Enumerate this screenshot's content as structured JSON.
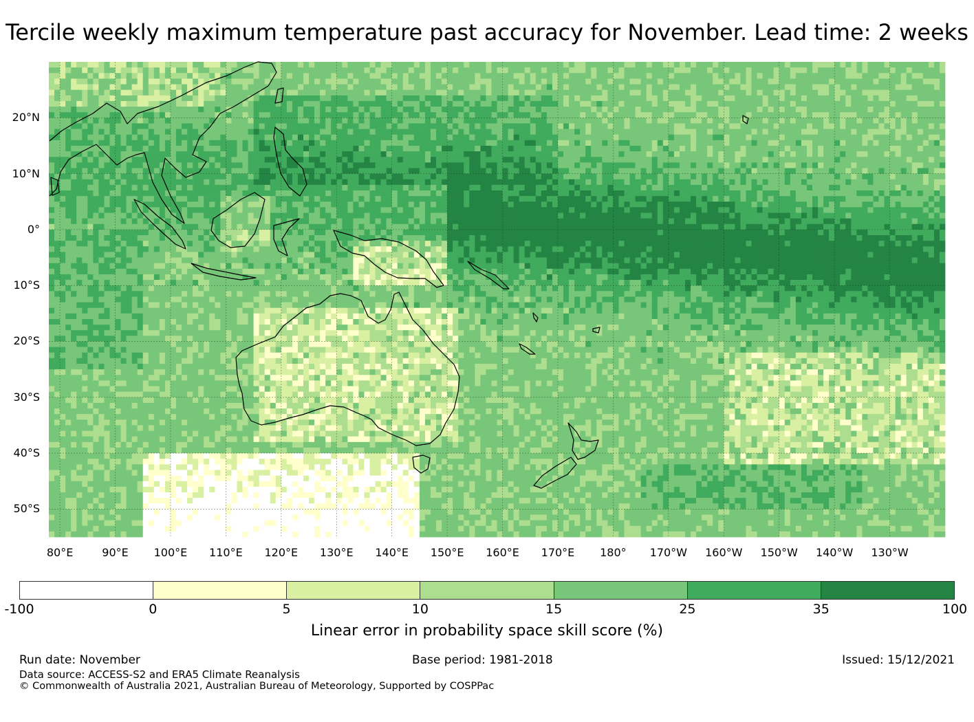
{
  "title": "Tercile weekly maximum temperature past accuracy for November. Lead time: 2 weeks",
  "map": {
    "projection": "Plate Carree",
    "extent": {
      "lon_min": 78,
      "lon_max": 240,
      "lat_min": -55,
      "lat_max": 30
    },
    "lat_ticks": [
      {
        "value": 20,
        "label": "20°N"
      },
      {
        "value": 10,
        "label": "10°N"
      },
      {
        "value": 0,
        "label": "0°"
      },
      {
        "value": -10,
        "label": "10°S"
      },
      {
        "value": -20,
        "label": "20°S"
      },
      {
        "value": -30,
        "label": "30°S"
      },
      {
        "value": -40,
        "label": "40°S"
      },
      {
        "value": -50,
        "label": "50°S"
      }
    ],
    "lon_ticks": [
      {
        "value": 80,
        "label": "80°E"
      },
      {
        "value": 90,
        "label": "90°E"
      },
      {
        "value": 100,
        "label": "100°E"
      },
      {
        "value": 110,
        "label": "110°E"
      },
      {
        "value": 120,
        "label": "120°E"
      },
      {
        "value": 130,
        "label": "130°E"
      },
      {
        "value": 140,
        "label": "140°E"
      },
      {
        "value": 150,
        "label": "150°E"
      },
      {
        "value": 160,
        "label": "160°E"
      },
      {
        "value": 170,
        "label": "170°E"
      },
      {
        "value": 180,
        "label": "180°"
      },
      {
        "value": 190,
        "label": "170°W"
      },
      {
        "value": 200,
        "label": "160°W"
      },
      {
        "value": 210,
        "label": "150°W"
      },
      {
        "value": 220,
        "label": "140°W"
      },
      {
        "value": 230,
        "label": "130°W"
      }
    ],
    "colors": [
      "#ffffff",
      "#ffffcc",
      "#d9f0a3",
      "#addd8e",
      "#78c679",
      "#41ab5d",
      "#238443"
    ],
    "gridline_color": "#1a3d1a"
  },
  "colorbar": {
    "ticks": [
      "-100",
      "0",
      "5",
      "10",
      "15",
      "25",
      "35",
      "100"
    ],
    "label": "Linear error in probability space skill score (%)"
  },
  "footer": {
    "run_date": "Run date: November",
    "base_period": "Base period: 1981-2018",
    "issued": "Issued: 15/12/2021",
    "data_source": "Data source: ACCESS-S2 and ERA5 Climate Reanalysis",
    "copyright": "© Commonwealth of Australia 2021, Australian Bureau of Meteorology, Supported by COSPPac"
  }
}
